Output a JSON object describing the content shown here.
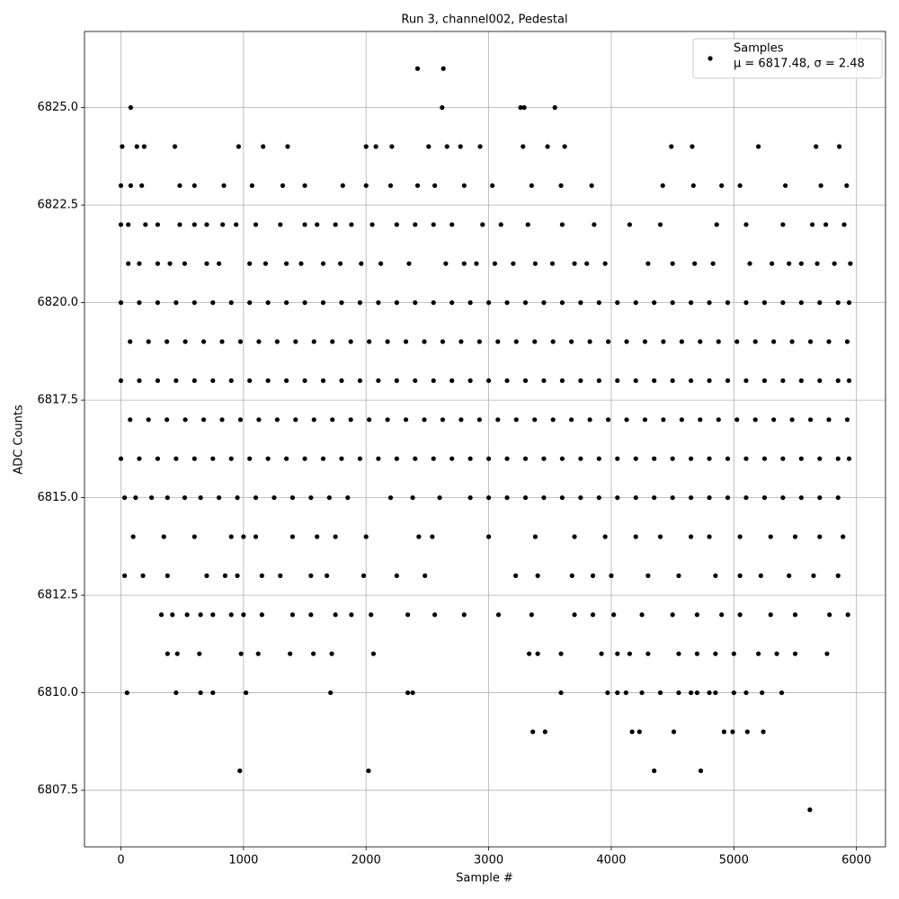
{
  "chart_data": {
    "type": "scatter",
    "title": "Run 3, channel002, Pedestal",
    "x_label": "Sample #",
    "y_label": "ADC Counts",
    "xlim": [
      -297,
      6237
    ],
    "ylim": [
      6806.05,
      6826.95
    ],
    "xticks": [
      0,
      1000,
      2000,
      3000,
      4000,
      5000,
      6000
    ],
    "yticks": [
      6807.5,
      {
        "value": 6810,
        "label": "6810.0"
      },
      6812.5,
      {
        "value": 6815,
        "label": "6815.0"
      },
      6817.5,
      {
        "value": 6820,
        "label": "6820.0"
      },
      6822.5,
      {
        "value": 6825,
        "label": "6825.0"
      }
    ],
    "grid": true,
    "legend": "upper right",
    "annotation": "μ = 6817.48, σ = 2.48",
    "x": [
      2420,
      2630,
      80,
      2620,
      3260,
      3290,
      3540,
      10,
      130,
      190,
      440,
      960,
      1160,
      1360,
      2000,
      2080,
      2210,
      2510,
      2660,
      2770,
      2930,
      3280,
      3480,
      3620,
      4490,
      4660,
      5200,
      5670,
      5860,
      0,
      80,
      170,
      480,
      600,
      840,
      1070,
      1320,
      1500,
      1810,
      2000,
      2200,
      2420,
      2560,
      2800,
      3030,
      3350,
      3590,
      3840,
      4420,
      4670,
      4900,
      5050,
      5420,
      5710,
      5920,
      0,
      60,
      200,
      300,
      480,
      600,
      700,
      830,
      940,
      1100,
      1300,
      1500,
      1600,
      1750,
      1880,
      2050,
      2250,
      2400,
      2550,
      2700,
      2950,
      3100,
      3320,
      3600,
      3860,
      4150,
      4400,
      4860,
      5100,
      5400,
      5640,
      5750,
      5900,
      60,
      150,
      300,
      400,
      520,
      700,
      800,
      1050,
      1180,
      1350,
      1470,
      1650,
      1790,
      1960,
      2120,
      2350,
      2650,
      2800,
      2900,
      3050,
      3200,
      3380,
      3520,
      3700,
      3800,
      3950,
      4300,
      4500,
      4680,
      4830,
      5130,
      5310,
      5450,
      5550,
      5680,
      5820,
      5950,
      0,
      150,
      300,
      450,
      600,
      750,
      900,
      1050,
      1200,
      1350,
      1500,
      1650,
      1800,
      1950,
      2100,
      2250,
      2400,
      2550,
      2700,
      2850,
      3000,
      3150,
      3300,
      3450,
      3600,
      3750,
      3900,
      4050,
      4200,
      4350,
      4500,
      4650,
      4800,
      4950,
      5100,
      5250,
      5400,
      5550,
      5700,
      5850,
      5940,
      75,
      225,
      375,
      525,
      675,
      825,
      975,
      1125,
      1275,
      1425,
      1575,
      1725,
      1875,
      2025,
      2175,
      2325,
      2475,
      2625,
      2775,
      2925,
      3075,
      3225,
      3375,
      3525,
      3675,
      3825,
      3975,
      4125,
      4275,
      4425,
      4575,
      4725,
      4875,
      5025,
      5175,
      5325,
      5475,
      5625,
      5775,
      5925,
      0,
      150,
      300,
      450,
      600,
      750,
      900,
      1050,
      1200,
      1350,
      1500,
      1650,
      1800,
      1950,
      2100,
      2250,
      2400,
      2550,
      2700,
      2850,
      3000,
      3150,
      3300,
      3450,
      3600,
      3750,
      3900,
      4050,
      4200,
      4350,
      4500,
      4650,
      4800,
      4950,
      5100,
      5250,
      5400,
      5550,
      5700,
      5850,
      5940,
      75,
      225,
      375,
      525,
      675,
      825,
      975,
      1125,
      1275,
      1425,
      1575,
      1725,
      1875,
      2025,
      2175,
      2325,
      2475,
      2625,
      2775,
      2925,
      3075,
      3225,
      3375,
      3525,
      3675,
      3825,
      3975,
      4125,
      4275,
      4425,
      4575,
      4725,
      4875,
      5025,
      5175,
      5325,
      5475,
      5625,
      5775,
      5925,
      0,
      150,
      300,
      450,
      600,
      750,
      900,
      1050,
      1200,
      1350,
      1500,
      1650,
      1800,
      1950,
      2100,
      2250,
      2400,
      2550,
      2700,
      2850,
      3000,
      3150,
      3300,
      3450,
      3600,
      3750,
      3900,
      4050,
      4200,
      4350,
      4500,
      4650,
      4800,
      4950,
      5100,
      5250,
      5400,
      5550,
      5700,
      5850,
      5940,
      30,
      120,
      250,
      380,
      520,
      650,
      800,
      950,
      1100,
      1250,
      1400,
      1550,
      1700,
      1850,
      2200,
      2380,
      2600,
      2850,
      3000,
      3150,
      3300,
      3450,
      3600,
      3750,
      3900,
      4050,
      4200,
      4350,
      4500,
      4650,
      4800,
      4950,
      5100,
      5250,
      5400,
      5550,
      5700,
      5850,
      100,
      350,
      600,
      900,
      1000,
      1100,
      1400,
      1600,
      1750,
      2000,
      2430,
      2540,
      3000,
      3380,
      3700,
      3950,
      4200,
      4400,
      4650,
      4800,
      5050,
      5300,
      5500,
      5700,
      5890,
      30,
      180,
      380,
      700,
      850,
      950,
      1150,
      1300,
      1550,
      1680,
      1980,
      2250,
      2480,
      3220,
      3400,
      3680,
      3850,
      4000,
      4300,
      4550,
      4850,
      5050,
      5220,
      5450,
      5650,
      5850,
      330,
      420,
      540,
      650,
      750,
      900,
      1000,
      1150,
      1400,
      1550,
      1750,
      1880,
      2040,
      2340,
      2560,
      2800,
      3080,
      3350,
      3700,
      3850,
      4020,
      4250,
      4500,
      4700,
      4900,
      5050,
      5300,
      5500,
      5780,
      5930,
      380,
      460,
      640,
      980,
      1120,
      1380,
      1570,
      1720,
      2060,
      3330,
      3400,
      3590,
      3920,
      4050,
      4150,
      4300,
      4550,
      4700,
      4850,
      5000,
      5200,
      5350,
      5500,
      5760,
      50,
      450,
      650,
      750,
      1020,
      1710,
      2340,
      2380,
      3590,
      3970,
      4050,
      4120,
      4250,
      4400,
      4550,
      4650,
      4700,
      4800,
      4850,
      5000,
      5100,
      5230,
      5390,
      3360,
      3460,
      4170,
      4230,
      4510,
      4920,
      4990,
      5110,
      5240,
      970,
      2020,
      4350,
      4730,
      5620
    ],
    "series": [
      {
        "name": "Samples",
        "color": "#000000",
        "values": [
          6826,
          6826,
          6825,
          6825,
          6825,
          6825,
          6825,
          6824,
          6824,
          6824,
          6824,
          6824,
          6824,
          6824,
          6824,
          6824,
          6824,
          6824,
          6824,
          6824,
          6824,
          6824,
          6824,
          6824,
          6824,
          6824,
          6824,
          6824,
          6824,
          6823,
          6823,
          6823,
          6823,
          6823,
          6823,
          6823,
          6823,
          6823,
          6823,
          6823,
          6823,
          6823,
          6823,
          6823,
          6823,
          6823,
          6823,
          6823,
          6823,
          6823,
          6823,
          6823,
          6823,
          6823,
          6823,
          6822,
          6822,
          6822,
          6822,
          6822,
          6822,
          6822,
          6822,
          6822,
          6822,
          6822,
          6822,
          6822,
          6822,
          6822,
          6822,
          6822,
          6822,
          6822,
          6822,
          6822,
          6822,
          6822,
          6822,
          6822,
          6822,
          6822,
          6822,
          6822,
          6822,
          6822,
          6822,
          6822,
          6821,
          6821,
          6821,
          6821,
          6821,
          6821,
          6821,
          6821,
          6821,
          6821,
          6821,
          6821,
          6821,
          6821,
          6821,
          6821,
          6821,
          6821,
          6821,
          6821,
          6821,
          6821,
          6821,
          6821,
          6821,
          6821,
          6821,
          6821,
          6821,
          6821,
          6821,
          6821,
          6821,
          6821,
          6821,
          6821,
          6821,
          6820,
          6820,
          6820,
          6820,
          6820,
          6820,
          6820,
          6820,
          6820,
          6820,
          6820,
          6820,
          6820,
          6820,
          6820,
          6820,
          6820,
          6820,
          6820,
          6820,
          6820,
          6820,
          6820,
          6820,
          6820,
          6820,
          6820,
          6820,
          6820,
          6820,
          6820,
          6820,
          6820,
          6820,
          6820,
          6820,
          6820,
          6820,
          6820,
          6820,
          6820,
          6819,
          6819,
          6819,
          6819,
          6819,
          6819,
          6819,
          6819,
          6819,
          6819,
          6819,
          6819,
          6819,
          6819,
          6819,
          6819,
          6819,
          6819,
          6819,
          6819,
          6819,
          6819,
          6819,
          6819,
          6819,
          6819,
          6819,
          6819,
          6819,
          6819,
          6819,
          6819,
          6819,
          6819,
          6819,
          6819,
          6819,
          6819,
          6819,
          6819,
          6818,
          6818,
          6818,
          6818,
          6818,
          6818,
          6818,
          6818,
          6818,
          6818,
          6818,
          6818,
          6818,
          6818,
          6818,
          6818,
          6818,
          6818,
          6818,
          6818,
          6818,
          6818,
          6818,
          6818,
          6818,
          6818,
          6818,
          6818,
          6818,
          6818,
          6818,
          6818,
          6818,
          6818,
          6818,
          6818,
          6818,
          6818,
          6818,
          6818,
          6818,
          6817,
          6817,
          6817,
          6817,
          6817,
          6817,
          6817,
          6817,
          6817,
          6817,
          6817,
          6817,
          6817,
          6817,
          6817,
          6817,
          6817,
          6817,
          6817,
          6817,
          6817,
          6817,
          6817,
          6817,
          6817,
          6817,
          6817,
          6817,
          6817,
          6817,
          6817,
          6817,
          6817,
          6817,
          6817,
          6817,
          6817,
          6817,
          6817,
          6817,
          6816,
          6816,
          6816,
          6816,
          6816,
          6816,
          6816,
          6816,
          6816,
          6816,
          6816,
          6816,
          6816,
          6816,
          6816,
          6816,
          6816,
          6816,
          6816,
          6816,
          6816,
          6816,
          6816,
          6816,
          6816,
          6816,
          6816,
          6816,
          6816,
          6816,
          6816,
          6816,
          6816,
          6816,
          6816,
          6816,
          6816,
          6816,
          6816,
          6816,
          6816,
          6815,
          6815,
          6815,
          6815,
          6815,
          6815,
          6815,
          6815,
          6815,
          6815,
          6815,
          6815,
          6815,
          6815,
          6815,
          6815,
          6815,
          6815,
          6815,
          6815,
          6815,
          6815,
          6815,
          6815,
          6815,
          6815,
          6815,
          6815,
          6815,
          6815,
          6815,
          6815,
          6815,
          6815,
          6815,
          6815,
          6815,
          6815,
          6814,
          6814,
          6814,
          6814,
          6814,
          6814,
          6814,
          6814,
          6814,
          6814,
          6814,
          6814,
          6814,
          6814,
          6814,
          6814,
          6814,
          6814,
          6814,
          6814,
          6814,
          6814,
          6814,
          6814,
          6814,
          6813,
          6813,
          6813,
          6813,
          6813,
          6813,
          6813,
          6813,
          6813,
          6813,
          6813,
          6813,
          6813,
          6813,
          6813,
          6813,
          6813,
          6813,
          6813,
          6813,
          6813,
          6813,
          6813,
          6813,
          6813,
          6813,
          6812,
          6812,
          6812,
          6812,
          6812,
          6812,
          6812,
          6812,
          6812,
          6812,
          6812,
          6812,
          6812,
          6812,
          6812,
          6812,
          6812,
          6812,
          6812,
          6812,
          6812,
          6812,
          6812,
          6812,
          6812,
          6812,
          6812,
          6812,
          6812,
          6812,
          6811,
          6811,
          6811,
          6811,
          6811,
          6811,
          6811,
          6811,
          6811,
          6811,
          6811,
          6811,
          6811,
          6811,
          6811,
          6811,
          6811,
          6811,
          6811,
          6811,
          6811,
          6811,
          6811,
          6811,
          6810,
          6810,
          6810,
          6810,
          6810,
          6810,
          6810,
          6810,
          6810,
          6810,
          6810,
          6810,
          6810,
          6810,
          6810,
          6810,
          6810,
          6810,
          6810,
          6810,
          6810,
          6810,
          6810,
          6809,
          6809,
          6809,
          6809,
          6809,
          6809,
          6809,
          6809,
          6809,
          6808,
          6808,
          6808,
          6808,
          6807
        ]
      }
    ]
  }
}
